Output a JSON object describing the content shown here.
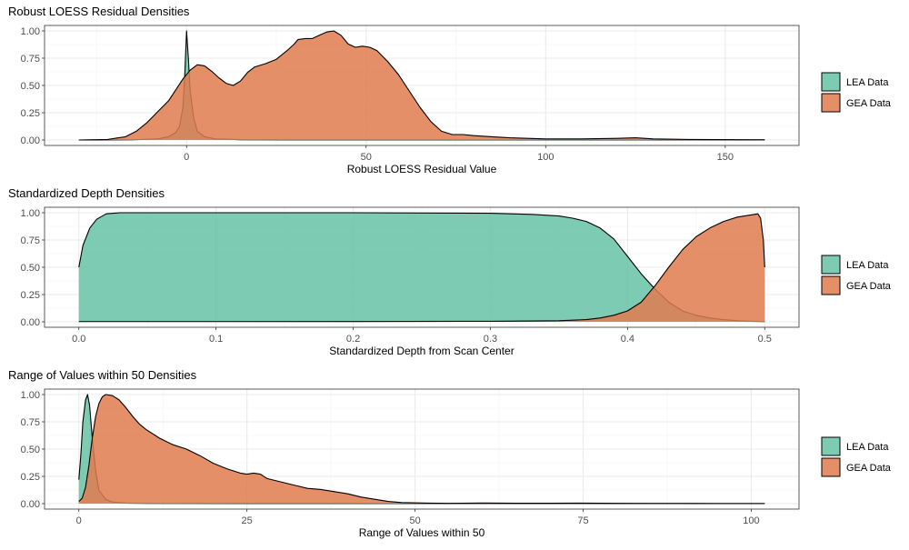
{
  "chart_data": [
    {
      "type": "area",
      "title": "Robust LOESS Residual Densities",
      "xlabel": "Robust LOESS Residual Value",
      "ylabel": "",
      "xlim": [
        -30,
        161
      ],
      "ylim": [
        0,
        1
      ],
      "x_ticks": [
        0,
        50,
        100,
        150
      ],
      "x_tick_labels": [
        "0",
        "50",
        "100",
        "150"
      ],
      "y_ticks": [
        0,
        0.25,
        0.5,
        0.75,
        1
      ],
      "y_tick_labels": [
        "0.00",
        "0.25",
        "0.50",
        "0.75",
        "1.00"
      ],
      "grid": true,
      "legend_position": "right",
      "series": [
        {
          "name": "LEA Data",
          "color": "#66C2A5",
          "points": [
            [
              -30,
              0
            ],
            [
              -15,
              0.002
            ],
            [
              -8,
              0.01
            ],
            [
              -5,
              0.03
            ],
            [
              -3,
              0.07
            ],
            [
              -2,
              0.12
            ],
            [
              -1,
              0.3
            ],
            [
              -0.5,
              0.6
            ],
            [
              0,
              1.0
            ],
            [
              0.5,
              0.75
            ],
            [
              1,
              0.45
            ],
            [
              2,
              0.2
            ],
            [
              3,
              0.08
            ],
            [
              5,
              0.03
            ],
            [
              8,
              0.01
            ],
            [
              15,
              0.003
            ],
            [
              30,
              0.001
            ],
            [
              60,
              0.001
            ],
            [
              100,
              0.001
            ],
            [
              161,
              0.001
            ]
          ]
        },
        {
          "name": "GEA Data",
          "color": "#E07B4F",
          "points": [
            [
              -30,
              0
            ],
            [
              -22,
              0.005
            ],
            [
              -17,
              0.03
            ],
            [
              -14,
              0.08
            ],
            [
              -11,
              0.16
            ],
            [
              -8,
              0.26
            ],
            [
              -5,
              0.36
            ],
            [
              -3,
              0.46
            ],
            [
              -1,
              0.56
            ],
            [
              1,
              0.64
            ],
            [
              3,
              0.69
            ],
            [
              5,
              0.68
            ],
            [
              7,
              0.63
            ],
            [
              9,
              0.57
            ],
            [
              11,
              0.52
            ],
            [
              13,
              0.5
            ],
            [
              15,
              0.54
            ],
            [
              17,
              0.62
            ],
            [
              19,
              0.67
            ],
            [
              22,
              0.7
            ],
            [
              25,
              0.74
            ],
            [
              28,
              0.82
            ],
            [
              30,
              0.88
            ],
            [
              31,
              0.92
            ],
            [
              33,
              0.93
            ],
            [
              35,
              0.93
            ],
            [
              37,
              0.96
            ],
            [
              39,
              0.99
            ],
            [
              41,
              1.0
            ],
            [
              43,
              0.96
            ],
            [
              45,
              0.88
            ],
            [
              47,
              0.85
            ],
            [
              49,
              0.86
            ],
            [
              51,
              0.85
            ],
            [
              53,
              0.82
            ],
            [
              56,
              0.72
            ],
            [
              59,
              0.6
            ],
            [
              62,
              0.45
            ],
            [
              65,
              0.3
            ],
            [
              68,
              0.17
            ],
            [
              71,
              0.08
            ],
            [
              74,
              0.05
            ],
            [
              77,
              0.05
            ],
            [
              80,
              0.04
            ],
            [
              85,
              0.03
            ],
            [
              90,
              0.02
            ],
            [
              100,
              0.01
            ],
            [
              110,
              0.01
            ],
            [
              120,
              0.015
            ],
            [
              125,
              0.02
            ],
            [
              130,
              0.01
            ],
            [
              140,
              0.005
            ],
            [
              161,
              0.002
            ]
          ]
        }
      ]
    },
    {
      "type": "area",
      "title": "Standardized Depth Densities",
      "xlabel": "Standardized Depth from Scan Center",
      "ylabel": "",
      "xlim": [
        0,
        0.5
      ],
      "ylim": [
        0,
        1
      ],
      "x_ticks": [
        0,
        0.1,
        0.2,
        0.3,
        0.4,
        0.5
      ],
      "x_tick_labels": [
        "0.0",
        "0.1",
        "0.2",
        "0.3",
        "0.4",
        "0.5"
      ],
      "y_ticks": [
        0,
        0.25,
        0.5,
        0.75,
        1
      ],
      "y_tick_labels": [
        "0.00",
        "0.25",
        "0.50",
        "0.75",
        "1.00"
      ],
      "grid": true,
      "legend_position": "right",
      "series": [
        {
          "name": "LEA Data",
          "color": "#66C2A5",
          "points": [
            [
              0,
              0.5
            ],
            [
              0.003,
              0.7
            ],
            [
              0.008,
              0.86
            ],
            [
              0.013,
              0.94
            ],
            [
              0.02,
              0.99
            ],
            [
              0.03,
              1.0
            ],
            [
              0.1,
              1.0
            ],
            [
              0.2,
              1.0
            ],
            [
              0.3,
              0.995
            ],
            [
              0.33,
              0.985
            ],
            [
              0.35,
              0.97
            ],
            [
              0.36,
              0.95
            ],
            [
              0.37,
              0.92
            ],
            [
              0.38,
              0.86
            ],
            [
              0.39,
              0.76
            ],
            [
              0.4,
              0.6
            ],
            [
              0.41,
              0.44
            ],
            [
              0.42,
              0.3
            ],
            [
              0.43,
              0.18
            ],
            [
              0.44,
              0.1
            ],
            [
              0.45,
              0.06
            ],
            [
              0.46,
              0.035
            ],
            [
              0.47,
              0.02
            ],
            [
              0.48,
              0.01
            ],
            [
              0.49,
              0.005
            ],
            [
              0.5,
              0.002
            ]
          ]
        },
        {
          "name": "GEA Data",
          "color": "#E07B4F",
          "points": [
            [
              0,
              0.002
            ],
            [
              0.1,
              0.002
            ],
            [
              0.2,
              0.003
            ],
            [
              0.3,
              0.005
            ],
            [
              0.35,
              0.01
            ],
            [
              0.37,
              0.02
            ],
            [
              0.38,
              0.035
            ],
            [
              0.39,
              0.06
            ],
            [
              0.4,
              0.1
            ],
            [
              0.41,
              0.18
            ],
            [
              0.42,
              0.33
            ],
            [
              0.43,
              0.5
            ],
            [
              0.44,
              0.66
            ],
            [
              0.45,
              0.78
            ],
            [
              0.46,
              0.86
            ],
            [
              0.47,
              0.92
            ],
            [
              0.48,
              0.96
            ],
            [
              0.49,
              0.98
            ],
            [
              0.495,
              0.99
            ],
            [
              0.497,
              0.95
            ],
            [
              0.499,
              0.75
            ],
            [
              0.5,
              0.5
            ]
          ]
        }
      ]
    },
    {
      "type": "area",
      "title": "Range of Values within 50 Densities",
      "xlabel": "Range of Values within 50",
      "ylabel": "",
      "xlim": [
        0,
        102
      ],
      "ylim": [
        0,
        1
      ],
      "x_ticks": [
        0,
        25,
        50,
        75,
        100
      ],
      "x_tick_labels": [
        "0",
        "25",
        "50",
        "75",
        "100"
      ],
      "y_ticks": [
        0,
        0.25,
        0.5,
        0.75,
        1
      ],
      "y_tick_labels": [
        "0.00",
        "0.25",
        "0.50",
        "0.75",
        "1.00"
      ],
      "grid": true,
      "legend_position": "right",
      "series": [
        {
          "name": "LEA Data",
          "color": "#66C2A5",
          "points": [
            [
              0,
              0.22
            ],
            [
              0.3,
              0.45
            ],
            [
              0.6,
              0.75
            ],
            [
              1,
              0.95
            ],
            [
              1.3,
              1.0
            ],
            [
              1.6,
              0.9
            ],
            [
              2,
              0.6
            ],
            [
              2.5,
              0.3
            ],
            [
              3,
              0.12
            ],
            [
              4,
              0.04
            ],
            [
              5,
              0.015
            ],
            [
              7,
              0.005
            ],
            [
              10,
              0.002
            ],
            [
              50,
              0.001
            ],
            [
              102,
              0.001
            ]
          ]
        },
        {
          "name": "GEA Data",
          "color": "#E07B4F",
          "points": [
            [
              0,
              0.02
            ],
            [
              0.5,
              0.05
            ],
            [
              1,
              0.15
            ],
            [
              1.5,
              0.35
            ],
            [
              2,
              0.6
            ],
            [
              2.5,
              0.8
            ],
            [
              3,
              0.92
            ],
            [
              3.5,
              0.98
            ],
            [
              4,
              1.0
            ],
            [
              5,
              0.99
            ],
            [
              6,
              0.95
            ],
            [
              7,
              0.88
            ],
            [
              8,
              0.8
            ],
            [
              9,
              0.73
            ],
            [
              10,
              0.68
            ],
            [
              12,
              0.6
            ],
            [
              14,
              0.54
            ],
            [
              16,
              0.5
            ],
            [
              18,
              0.44
            ],
            [
              20,
              0.37
            ],
            [
              22,
              0.32
            ],
            [
              24,
              0.28
            ],
            [
              25,
              0.27
            ],
            [
              26,
              0.28
            ],
            [
              27,
              0.27
            ],
            [
              28,
              0.23
            ],
            [
              30,
              0.2
            ],
            [
              32,
              0.17
            ],
            [
              34,
              0.14
            ],
            [
              36,
              0.13
            ],
            [
              38,
              0.11
            ],
            [
              40,
              0.09
            ],
            [
              42,
              0.06
            ],
            [
              44,
              0.04
            ],
            [
              46,
              0.02
            ],
            [
              48,
              0.01
            ],
            [
              52,
              0.005
            ],
            [
              55,
              0.003
            ],
            [
              60,
              0.006
            ],
            [
              65,
              0.004
            ],
            [
              70,
              0.004
            ],
            [
              75,
              0.005
            ],
            [
              80,
              0.003
            ],
            [
              85,
              0.002
            ],
            [
              90,
              0.002
            ],
            [
              95,
              0.001
            ],
            [
              102,
              0.001
            ]
          ]
        }
      ]
    }
  ]
}
